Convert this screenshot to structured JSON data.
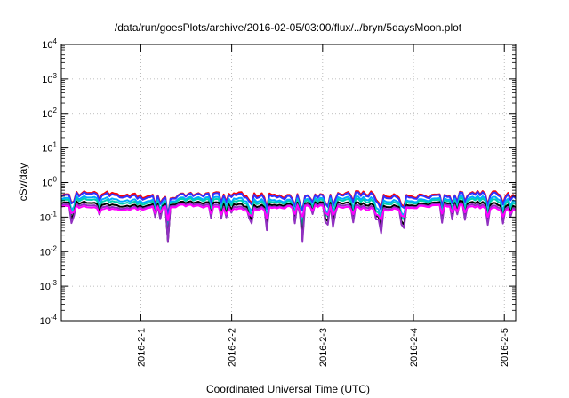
{
  "chart_data": {
    "type": "line",
    "title": "/data/run/goesPlots/archive/2016-02-05/03:00/flux/../bryn/5daysMoon.plot",
    "xlabel": "Coordinated Universal Time (UTC)",
    "ylabel": "cSv/day",
    "y_scale": "log",
    "ylim": [
      0.0001,
      10000
    ],
    "yticks": [
      {
        "value": 0.0001,
        "base": "10",
        "exp": "-4"
      },
      {
        "value": 0.001,
        "base": "10",
        "exp": "-3"
      },
      {
        "value": 0.01,
        "base": "10",
        "exp": "-2"
      },
      {
        "value": 0.1,
        "base": "10",
        "exp": "-1"
      },
      {
        "value": 1,
        "base": "10",
        "exp": "0"
      },
      {
        "value": 10,
        "base": "10",
        "exp": "1"
      },
      {
        "value": 100,
        "base": "10",
        "exp": "2"
      },
      {
        "value": 1000,
        "base": "10",
        "exp": "3"
      },
      {
        "value": 10000,
        "base": "10",
        "exp": "4"
      }
    ],
    "xlim": [
      "2016-01-31T03:00",
      "2016-02-05T03:00"
    ],
    "xticks": [
      {
        "value": "2016-02-01T00:00",
        "label": "2016-2-1"
      },
      {
        "value": "2016-02-02T00:00",
        "label": "2016-2-2"
      },
      {
        "value": "2016-02-03T00:00",
        "label": "2016-2-3"
      },
      {
        "value": "2016-02-04T00:00",
        "label": "2016-2-4"
      },
      {
        "value": "2016-02-05T00:00",
        "label": "2016-2-5"
      }
    ],
    "grid": true,
    "legend": "none",
    "series": [
      {
        "color": "#ff0000",
        "base": 0.45,
        "amp": 0.12,
        "dip": 0.55
      },
      {
        "color": "#3030ff",
        "base": 0.42,
        "amp": 0.11,
        "dip": 0.55
      },
      {
        "color": "#00aaff",
        "base": 0.33,
        "amp": 0.07,
        "dip": 0.65
      },
      {
        "color": "#00d0b0",
        "base": 0.29,
        "amp": 0.06,
        "dip": 0.7
      },
      {
        "color": "#000000",
        "base": 0.24,
        "amp": 0.04,
        "dip": 0.75
      },
      {
        "color": "#9030c0",
        "base": 0.21,
        "amp": 0.03,
        "dip": 0.78
      },
      {
        "color": "#ff00ff",
        "base": 0.19,
        "amp": 0.03,
        "dip": 0.45
      }
    ]
  }
}
